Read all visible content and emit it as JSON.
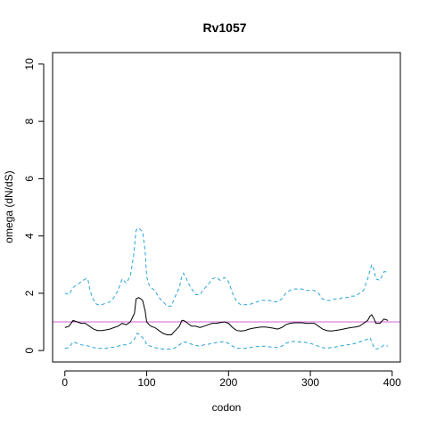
{
  "chart_data": {
    "type": "line",
    "title": "Rv1057",
    "xlabel": "codon",
    "ylabel": "omega (dN/dS)",
    "xlim": [
      -15,
      410
    ],
    "ylim": [
      -0.4,
      10.4
    ],
    "x_ticks": [
      0,
      100,
      200,
      300,
      400
    ],
    "y_ticks": [
      0,
      2,
      4,
      6,
      8,
      10
    ],
    "grid": false,
    "reference_line": {
      "y": 1,
      "color": "#cc66cc"
    },
    "series": [
      {
        "role": "upper",
        "color": "#29a3d6",
        "dash": "dashed",
        "x": [
          0,
          5,
          10,
          15,
          20,
          25,
          28,
          30,
          33,
          37,
          40,
          45,
          50,
          55,
          60,
          65,
          70,
          75,
          80,
          84,
          87,
          90,
          93,
          95,
          98,
          100,
          102,
          105,
          110,
          115,
          120,
          125,
          130,
          135,
          140,
          143,
          145,
          148,
          150,
          155,
          160,
          165,
          170,
          175,
          180,
          185,
          190,
          195,
          200,
          205,
          210,
          215,
          220,
          225,
          230,
          235,
          240,
          245,
          250,
          255,
          260,
          265,
          270,
          275,
          280,
          285,
          290,
          295,
          300,
          305,
          310,
          315,
          320,
          325,
          330,
          335,
          340,
          345,
          350,
          355,
          360,
          365,
          370,
          373,
          375,
          378,
          380,
          385,
          390,
          395
        ],
        "y": [
          2.0,
          1.95,
          2.2,
          2.3,
          2.4,
          2.5,
          2.5,
          2.2,
          1.9,
          1.65,
          1.6,
          1.6,
          1.65,
          1.7,
          1.85,
          2.1,
          2.5,
          2.35,
          2.6,
          3.3,
          4.2,
          4.28,
          4.2,
          4.15,
          3.5,
          2.6,
          2.35,
          2.2,
          2.1,
          1.85,
          1.7,
          1.55,
          1.55,
          1.9,
          2.2,
          2.6,
          2.7,
          2.55,
          2.4,
          2.15,
          1.95,
          1.95,
          2.15,
          2.3,
          2.5,
          2.55,
          2.45,
          2.55,
          2.4,
          2.0,
          1.7,
          1.6,
          1.6,
          1.6,
          1.65,
          1.7,
          1.75,
          1.75,
          1.75,
          1.7,
          1.7,
          1.8,
          2.0,
          2.1,
          2.15,
          2.15,
          2.15,
          2.1,
          2.1,
          2.1,
          2.0,
          1.8,
          1.75,
          1.75,
          1.8,
          1.8,
          1.85,
          1.85,
          1.9,
          1.9,
          2.0,
          2.1,
          2.5,
          2.8,
          3.0,
          2.8,
          2.5,
          2.45,
          2.75,
          2.75
        ]
      },
      {
        "role": "mean",
        "color": "#000000",
        "dash": "solid",
        "x": [
          0,
          5,
          10,
          15,
          20,
          25,
          30,
          35,
          40,
          45,
          50,
          55,
          60,
          65,
          70,
          75,
          80,
          85,
          87,
          90,
          93,
          95,
          98,
          100,
          103,
          105,
          110,
          115,
          120,
          125,
          130,
          135,
          140,
          143,
          145,
          148,
          150,
          155,
          160,
          165,
          170,
          175,
          180,
          185,
          190,
          195,
          200,
          205,
          210,
          215,
          220,
          225,
          230,
          235,
          240,
          245,
          250,
          255,
          260,
          265,
          270,
          275,
          280,
          285,
          290,
          295,
          300,
          305,
          310,
          315,
          320,
          325,
          330,
          335,
          340,
          345,
          350,
          355,
          360,
          365,
          370,
          373,
          375,
          378,
          380,
          385,
          390,
          395
        ],
        "y": [
          0.8,
          0.85,
          1.05,
          1.0,
          0.95,
          0.95,
          0.85,
          0.75,
          0.7,
          0.7,
          0.72,
          0.75,
          0.8,
          0.85,
          0.95,
          0.9,
          1.0,
          1.3,
          1.8,
          1.85,
          1.8,
          1.75,
          1.4,
          1.0,
          0.9,
          0.85,
          0.8,
          0.7,
          0.6,
          0.55,
          0.55,
          0.7,
          0.85,
          1.05,
          1.05,
          1.0,
          0.95,
          0.85,
          0.85,
          0.8,
          0.85,
          0.9,
          0.95,
          0.95,
          0.98,
          1.0,
          0.95,
          0.8,
          0.7,
          0.68,
          0.7,
          0.75,
          0.78,
          0.8,
          0.82,
          0.82,
          0.8,
          0.78,
          0.75,
          0.8,
          0.9,
          0.95,
          0.97,
          0.97,
          0.97,
          0.95,
          0.95,
          0.95,
          0.85,
          0.75,
          0.7,
          0.68,
          0.7,
          0.72,
          0.75,
          0.78,
          0.8,
          0.82,
          0.85,
          0.95,
          1.05,
          1.2,
          1.25,
          1.1,
          0.95,
          0.95,
          1.1,
          1.05
        ]
      },
      {
        "role": "lower",
        "color": "#29a3d6",
        "dash": "dashed",
        "x": [
          0,
          5,
          10,
          15,
          20,
          25,
          30,
          35,
          40,
          45,
          50,
          55,
          60,
          65,
          70,
          75,
          80,
          85,
          88,
          90,
          93,
          95,
          98,
          100,
          105,
          110,
          115,
          120,
          125,
          130,
          135,
          140,
          145,
          150,
          155,
          160,
          165,
          170,
          175,
          180,
          185,
          190,
          195,
          200,
          205,
          210,
          215,
          220,
          225,
          230,
          235,
          240,
          245,
          250,
          255,
          260,
          265,
          270,
          275,
          280,
          285,
          290,
          295,
          300,
          305,
          310,
          315,
          320,
          325,
          330,
          335,
          340,
          345,
          350,
          355,
          360,
          365,
          370,
          373,
          375,
          378,
          380,
          385,
          390,
          395
        ],
        "y": [
          0.08,
          0.1,
          0.3,
          0.25,
          0.2,
          0.18,
          0.15,
          0.1,
          0.08,
          0.08,
          0.08,
          0.1,
          0.12,
          0.15,
          0.2,
          0.2,
          0.25,
          0.4,
          0.6,
          0.58,
          0.5,
          0.45,
          0.35,
          0.2,
          0.15,
          0.1,
          0.08,
          0.05,
          0.05,
          0.05,
          0.1,
          0.2,
          0.3,
          0.28,
          0.22,
          0.18,
          0.15,
          0.2,
          0.22,
          0.25,
          0.28,
          0.3,
          0.3,
          0.25,
          0.15,
          0.08,
          0.08,
          0.08,
          0.1,
          0.12,
          0.14,
          0.15,
          0.15,
          0.13,
          0.12,
          0.1,
          0.15,
          0.25,
          0.3,
          0.32,
          0.3,
          0.3,
          0.28,
          0.25,
          0.2,
          0.15,
          0.1,
          0.08,
          0.1,
          0.12,
          0.15,
          0.18,
          0.2,
          0.22,
          0.25,
          0.3,
          0.35,
          0.4,
          0.45,
          0.3,
          0.1,
          0.05,
          0.08,
          0.2,
          0.15
        ]
      }
    ]
  }
}
